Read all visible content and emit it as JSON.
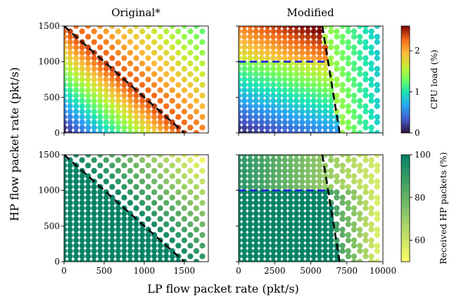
{
  "chart_data": {
    "type": "scatter",
    "shared_xlabel": "LP flow packet rate (pkt/s)",
    "shared_ylabel": "HP flow packet rate (pkt/s)",
    "columns": [
      {
        "title": "Original*",
        "xlim": [
          0,
          1800
        ],
        "xticks": [
          0,
          500,
          1000,
          1500
        ],
        "x": [
          0,
          75,
          150,
          225,
          300,
          375,
          450,
          525,
          600,
          675,
          750,
          825,
          900,
          975,
          1050,
          1125,
          1200,
          1275,
          1350,
          1425,
          1500,
          1575,
          1650,
          1725
        ],
        "boundary_line": {
          "color": "#000000",
          "x": [
            0,
            1500
          ],
          "y": [
            1500,
            0
          ]
        }
      },
      {
        "title": "Modified",
        "xlim": [
          0,
          10000
        ],
        "xticks": [
          0,
          2500,
          5000,
          7500,
          10000
        ],
        "x": [
          0,
          400,
          800,
          1200,
          1600,
          2000,
          2400,
          2800,
          3200,
          3600,
          4000,
          4400,
          4800,
          5200,
          5600,
          6000,
          6400,
          6800,
          7200,
          7600,
          8000,
          8400,
          8800,
          9200,
          9600
        ],
        "boundary_line": {
          "color": "#000000",
          "x": [
            5800,
            7000
          ],
          "y": [
            1500,
            0
          ]
        },
        "threshold_line": {
          "color": "#1a22d6",
          "x": [
            0,
            6000
          ],
          "y": [
            1000,
            1000
          ]
        }
      }
    ],
    "y": [
      0,
      75,
      150,
      225,
      300,
      375,
      450,
      525,
      600,
      675,
      750,
      825,
      900,
      975,
      1050,
      1125,
      1200,
      1275,
      1350,
      1425,
      1500
    ],
    "ylim": [
      0,
      1500
    ],
    "yticks": [
      0,
      500,
      1000,
      1500
    ],
    "rows": [
      {
        "metric": "CPU load",
        "colorbar_label": "CPU load (%)",
        "clim": [
          0,
          2.6
        ],
        "cticks": [
          0,
          1,
          2
        ],
        "colormap": "turbo"
      },
      {
        "metric": "Received HP packets",
        "colorbar_label": "Received HP packets (%)",
        "clim": [
          50,
          100
        ],
        "cticks": [
          60,
          80,
          100
        ],
        "colormap": "summer_r"
      }
    ]
  }
}
